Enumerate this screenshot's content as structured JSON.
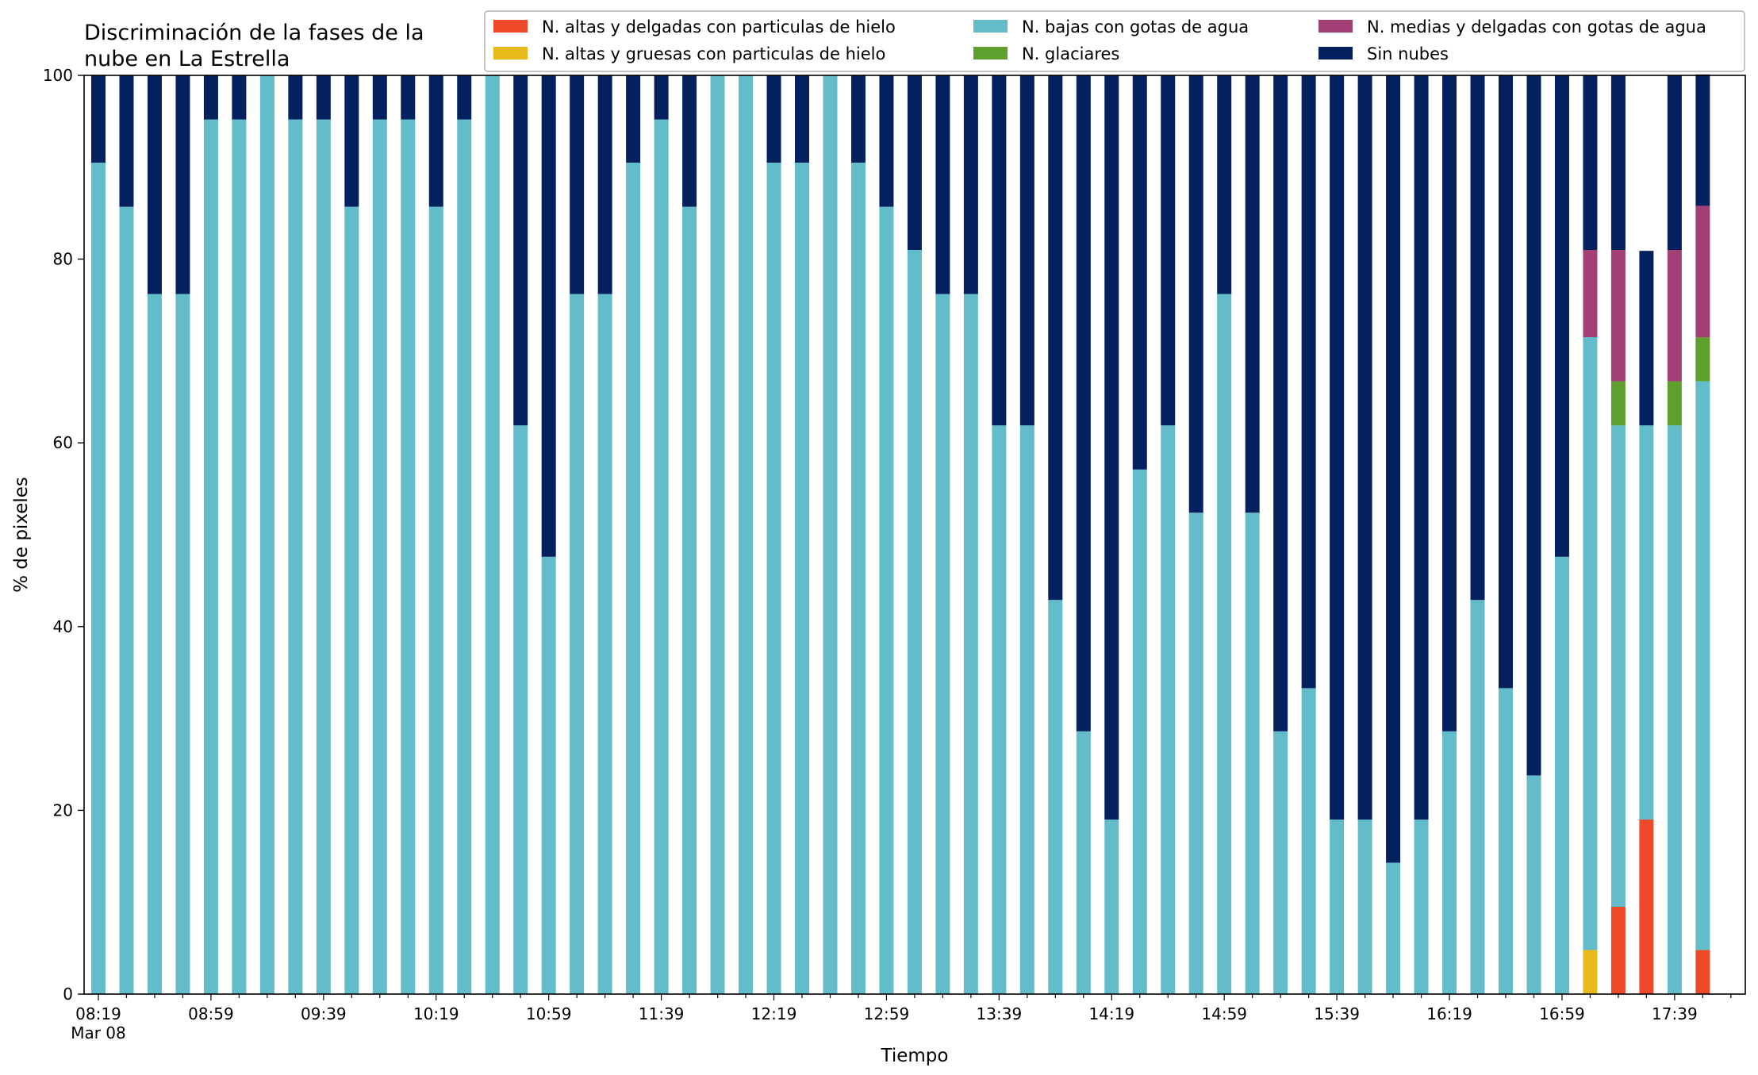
{
  "chart_data": {
    "type": "bar",
    "stacked": true,
    "title": "Discriminación de la fases de la\nnube en La Estrella",
    "title_lines": [
      "Discriminación de la fases de la",
      "nube en La Estrella"
    ],
    "xlabel": "Tiempo",
    "ylabel": "% de pixeles",
    "ylim": [
      0,
      100
    ],
    "yticks": [
      0,
      20,
      40,
      60,
      80,
      100
    ],
    "grid": false,
    "legend_position": "top-right",
    "x_start": "08:19",
    "x_interval_minutes": 10,
    "x_tick_labels": [
      "08:19\nMar 08",
      "08:59",
      "09:39",
      "10:19",
      "10:59",
      "11:39",
      "12:19",
      "12:59",
      "13:39",
      "14:19",
      "14:59",
      "15:39",
      "16:19",
      "16:59",
      "17:39"
    ],
    "categories": [
      "08:19",
      "08:29",
      "08:39",
      "08:49",
      "08:59",
      "09:09",
      "09:19",
      "09:29",
      "09:39",
      "09:49",
      "09:59",
      "10:09",
      "10:19",
      "10:29",
      "10:39",
      "10:49",
      "10:59",
      "11:09",
      "11:19",
      "11:29",
      "11:39",
      "11:49",
      "11:59",
      "12:09",
      "12:19",
      "12:29",
      "12:39",
      "12:49",
      "12:59",
      "13:09",
      "13:19",
      "13:29",
      "13:39",
      "13:49",
      "13:59",
      "14:09",
      "14:19",
      "14:29",
      "14:39",
      "14:49",
      "14:59",
      "15:09",
      "15:19",
      "15:29",
      "15:39",
      "15:49",
      "15:59",
      "16:09",
      "16:19",
      "16:29",
      "16:39",
      "16:49",
      "16:59",
      "17:09",
      "17:19",
      "17:29",
      "17:39",
      "17:49"
    ],
    "series": [
      {
        "name": "N. altas y delgadas con particulas de hielo",
        "color": "#ee4a2a",
        "values": [
          0,
          0,
          0,
          0,
          0,
          0,
          0,
          0,
          0,
          0,
          0,
          0,
          0,
          0,
          0,
          0,
          0,
          0,
          0,
          0,
          0,
          0,
          0,
          0,
          0,
          0,
          0,
          0,
          0,
          0,
          0,
          0,
          0,
          0,
          0,
          0,
          0,
          0,
          0,
          0,
          0,
          0,
          0,
          0,
          0,
          0,
          0,
          0,
          0,
          0,
          0,
          0,
          0,
          0,
          9.5,
          19,
          0,
          4.8
        ]
      },
      {
        "name": "N. altas y gruesas con particulas de hielo",
        "color": "#e8b91a",
        "values": [
          0,
          0,
          0,
          0,
          0,
          0,
          0,
          0,
          0,
          0,
          0,
          0,
          0,
          0,
          0,
          0,
          0,
          0,
          0,
          0,
          0,
          0,
          0,
          0,
          0,
          0,
          0,
          0,
          0,
          0,
          0,
          0,
          0,
          0,
          0,
          0,
          0,
          0,
          0,
          0,
          0,
          0,
          0,
          0,
          0,
          0,
          0,
          0,
          0,
          0,
          0,
          0,
          0,
          4.8,
          0,
          0,
          0,
          0
        ]
      },
      {
        "name": "N. bajas con gotas de agua",
        "color": "#63bcc9",
        "values": [
          90.5,
          85.7,
          76.2,
          76.2,
          95.2,
          95.2,
          100,
          95.2,
          95.2,
          85.7,
          95.2,
          95.2,
          85.7,
          95.2,
          100,
          61.9,
          47.6,
          76.2,
          76.2,
          90.5,
          95.2,
          85.7,
          100,
          100,
          90.5,
          90.5,
          100,
          90.5,
          85.7,
          81,
          76.2,
          76.2,
          61.9,
          61.9,
          42.9,
          28.6,
          19,
          57.1,
          61.9,
          52.4,
          76.2,
          52.4,
          28.6,
          33.3,
          19,
          19,
          14.3,
          19,
          28.6,
          42.9,
          33.3,
          23.8,
          47.6,
          66.7,
          52.4,
          42.9,
          61.9,
          61.9
        ]
      },
      {
        "name": "N. glaciares",
        "color": "#5e9f2e",
        "values": [
          0,
          0,
          0,
          0,
          0,
          0,
          0,
          0,
          0,
          0,
          0,
          0,
          0,
          0,
          0,
          0,
          0,
          0,
          0,
          0,
          0,
          0,
          0,
          0,
          0,
          0,
          0,
          0,
          0,
          0,
          0,
          0,
          0,
          0,
          0,
          0,
          0,
          0,
          0,
          0,
          0,
          0,
          0,
          0,
          0,
          0,
          0,
          0,
          0,
          0,
          0,
          0,
          0,
          0,
          4.8,
          0,
          4.8,
          4.8
        ]
      },
      {
        "name": "N. medias y delgadas con gotas de agua",
        "color": "#a23f75",
        "values": [
          0,
          0,
          0,
          0,
          0,
          0,
          0,
          0,
          0,
          0,
          0,
          0,
          0,
          0,
          0,
          0,
          0,
          0,
          0,
          0,
          0,
          0,
          0,
          0,
          0,
          0,
          0,
          0,
          0,
          0,
          0,
          0,
          0,
          0,
          0,
          0,
          0,
          0,
          0,
          0,
          0,
          0,
          0,
          0,
          0,
          0,
          0,
          0,
          0,
          0,
          0,
          0,
          0,
          9.5,
          14.3,
          0,
          14.3,
          14.3
        ]
      },
      {
        "name": "Sin nubes",
        "color": "#03205f",
        "values": [
          9.5,
          14.3,
          23.8,
          23.8,
          4.8,
          4.8,
          0,
          4.8,
          4.8,
          14.3,
          4.8,
          4.8,
          14.3,
          4.8,
          0,
          38.1,
          52.4,
          23.8,
          23.8,
          9.5,
          4.8,
          14.3,
          0,
          0,
          9.5,
          9.5,
          0,
          9.5,
          14.3,
          19,
          23.8,
          23.8,
          38.1,
          38.1,
          57.1,
          71.4,
          81,
          42.9,
          38.1,
          47.6,
          23.8,
          47.6,
          71.4,
          66.7,
          81,
          81,
          85.7,
          81,
          71.4,
          57.1,
          66.7,
          76.2,
          52.4,
          19,
          19,
          19,
          19,
          14.3
        ]
      }
    ]
  }
}
